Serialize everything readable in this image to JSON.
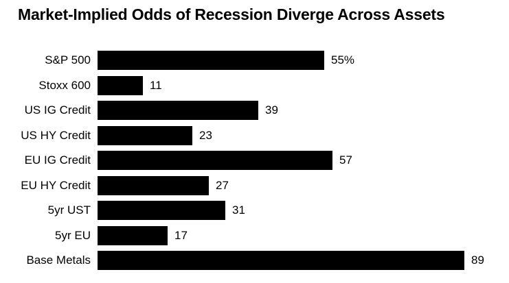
{
  "chart_data": {
    "type": "bar",
    "orientation": "horizontal",
    "title": "Market-Implied Odds of Recession Diverge Across Assets",
    "categories": [
      "S&P 500",
      "Stoxx 600",
      "US IG Credit",
      "US HY Credit",
      "EU IG Credit",
      "EU HY Credit",
      "5yr UST",
      "5yr EU",
      "Base Metals"
    ],
    "values": [
      55,
      11,
      39,
      23,
      57,
      27,
      31,
      17,
      89
    ],
    "value_labels": [
      "55%",
      "11",
      "39",
      "23",
      "57",
      "27",
      "31",
      "17",
      "89"
    ],
    "unit": "percent",
    "xlim": [
      0,
      100
    ],
    "grid": false,
    "axis_lines": false,
    "legend": null,
    "bar_color": "#000000",
    "text_color": "#000000",
    "background_color": "#ffffff"
  }
}
